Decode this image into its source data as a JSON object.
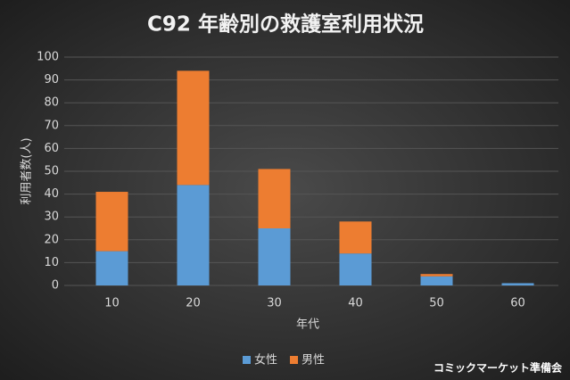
{
  "chart_data": {
    "type": "stacked_bar",
    "title": "C92 年齢別の救護室利用状況",
    "x_label": "年代",
    "y_label": "利用者数(人)",
    "categories": [
      "10",
      "20",
      "30",
      "40",
      "50",
      "60"
    ],
    "series": [
      {
        "name": "女性",
        "color": "#5b9bd5",
        "values": [
          15,
          44,
          25,
          14,
          4,
          1
        ]
      },
      {
        "name": "男性",
        "color": "#ed7d31",
        "values": [
          26,
          50,
          26,
          14,
          1,
          0
        ]
      }
    ],
    "ylim": [
      0,
      100
    ],
    "yticks": [
      0,
      10,
      20,
      30,
      40,
      50,
      60,
      70,
      80,
      90,
      100
    ],
    "grid": true,
    "legend": "bottom"
  },
  "footer": "コミックマーケット準備会"
}
